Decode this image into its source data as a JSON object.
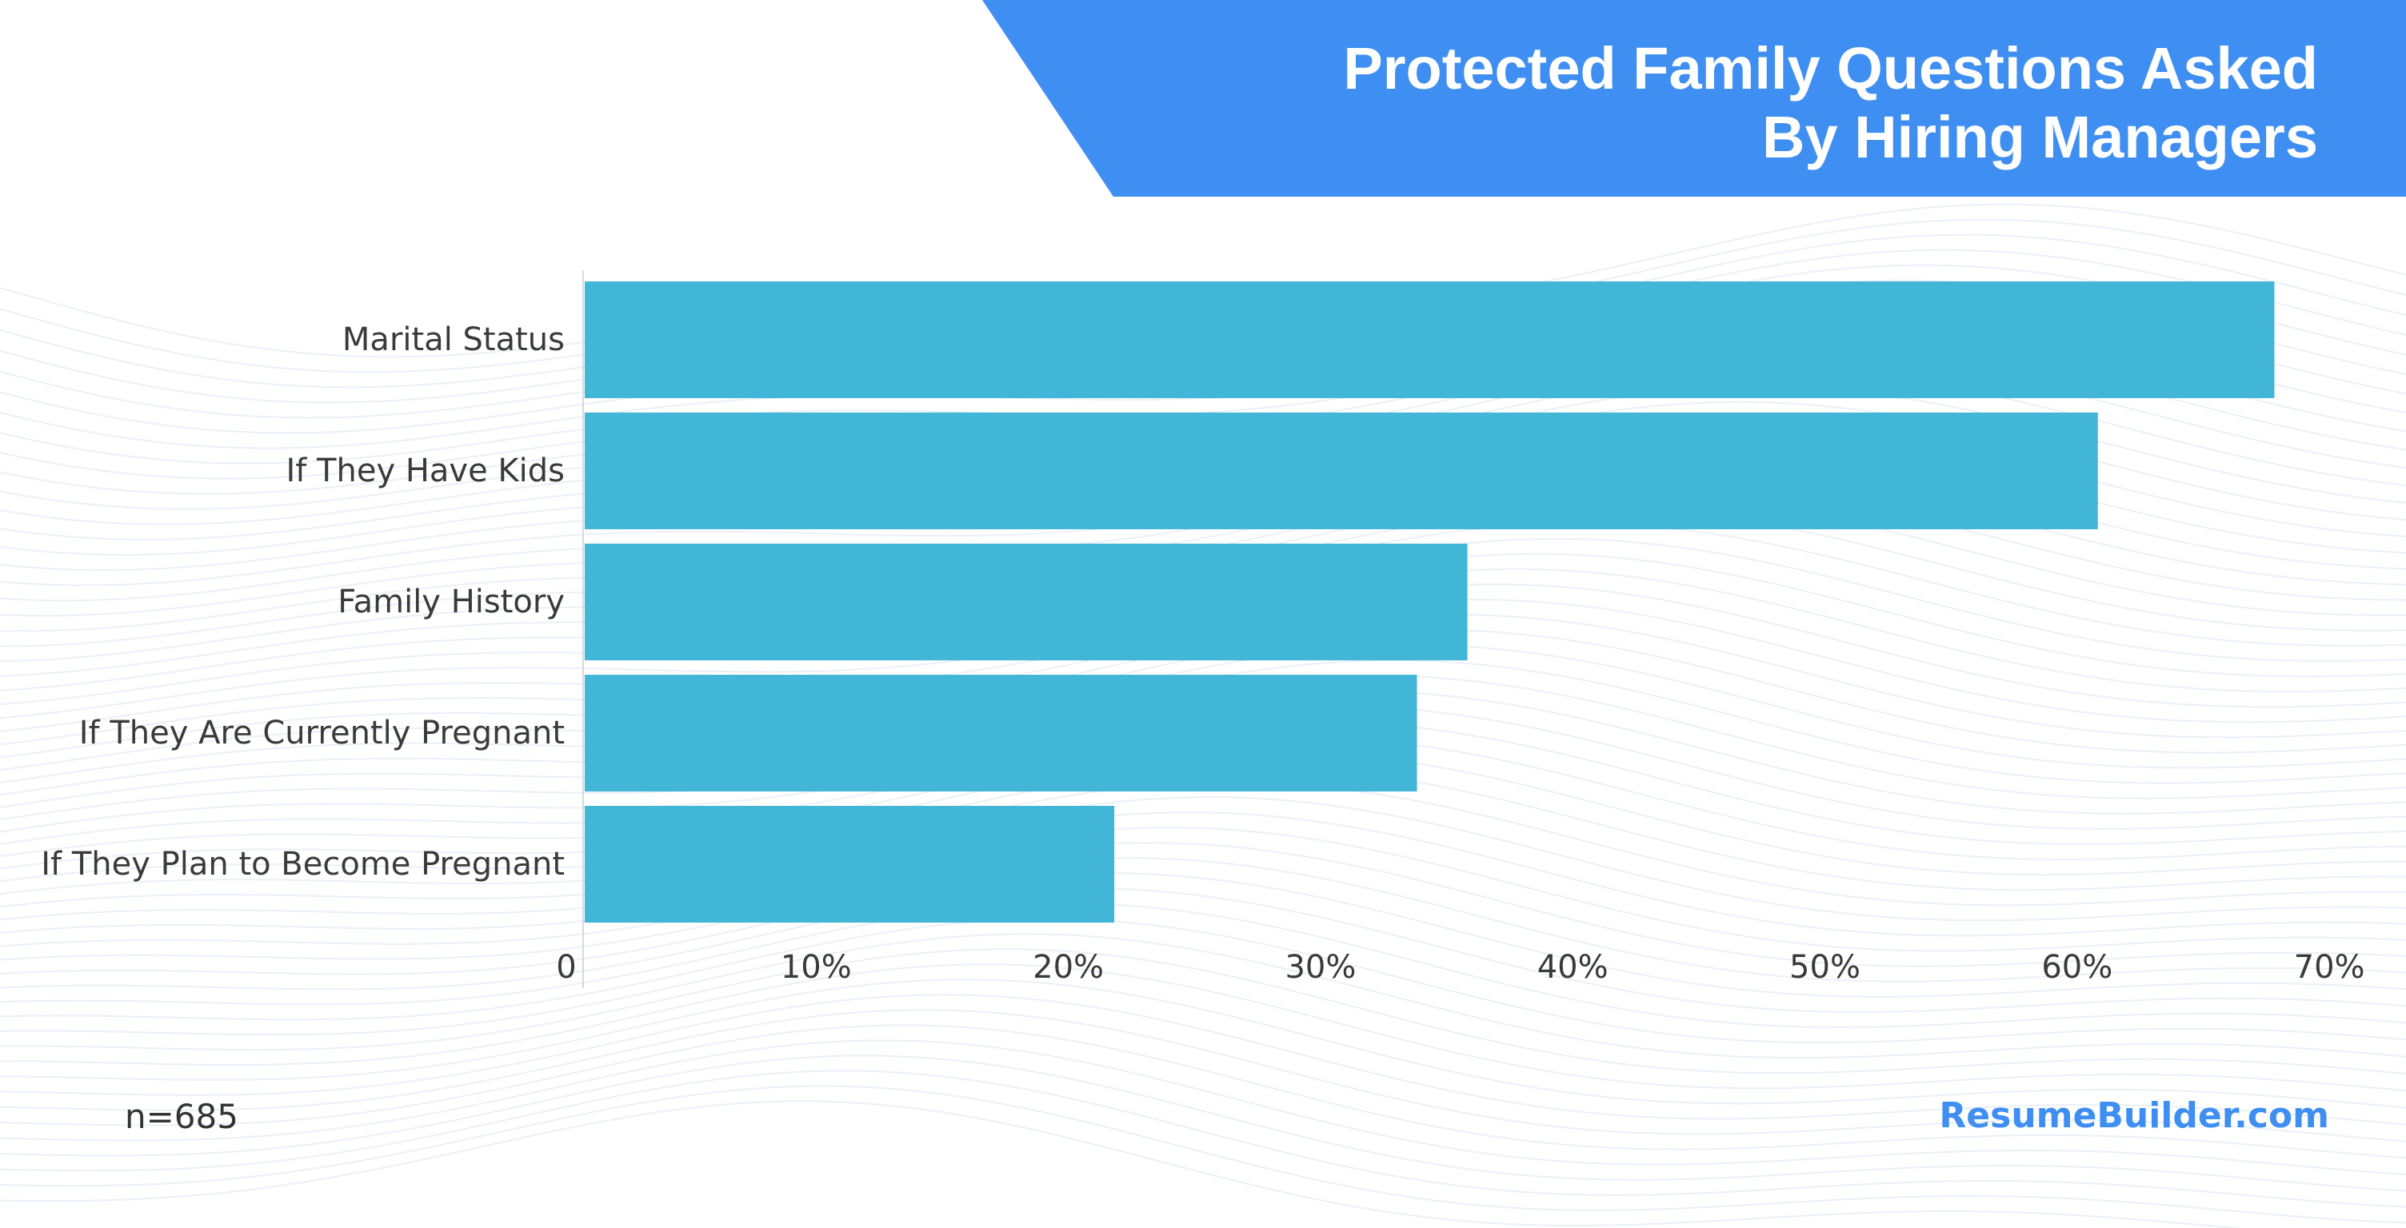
{
  "header": {
    "title_line1": "Protected Family Questions Asked",
    "title_line2": "By Hiring Managers"
  },
  "footer": {
    "sample": "n=685",
    "brand": "ResumeBuilder.com"
  },
  "colors": {
    "banner": "#3f8ef2",
    "bar": "#42b6d6",
    "brand": "#3f8ef2",
    "text": "#3a3a3a"
  },
  "chart_data": {
    "type": "bar",
    "orientation": "horizontal",
    "categories": [
      "Marital Status",
      "If They Have Kids",
      "Family History",
      "If They Are Currently Pregnant",
      "If They Plan to Become Pregnant"
    ],
    "values": [
      67,
      60,
      35,
      33,
      21
    ],
    "value_unit": "%",
    "xlim": [
      0,
      70
    ],
    "xticks": [
      "0",
      "10%",
      "20%",
      "30%",
      "40%",
      "50%",
      "60%",
      "70%"
    ],
    "title": "Protected Family Questions Asked By Hiring Managers",
    "grid": false,
    "legend": "none"
  }
}
